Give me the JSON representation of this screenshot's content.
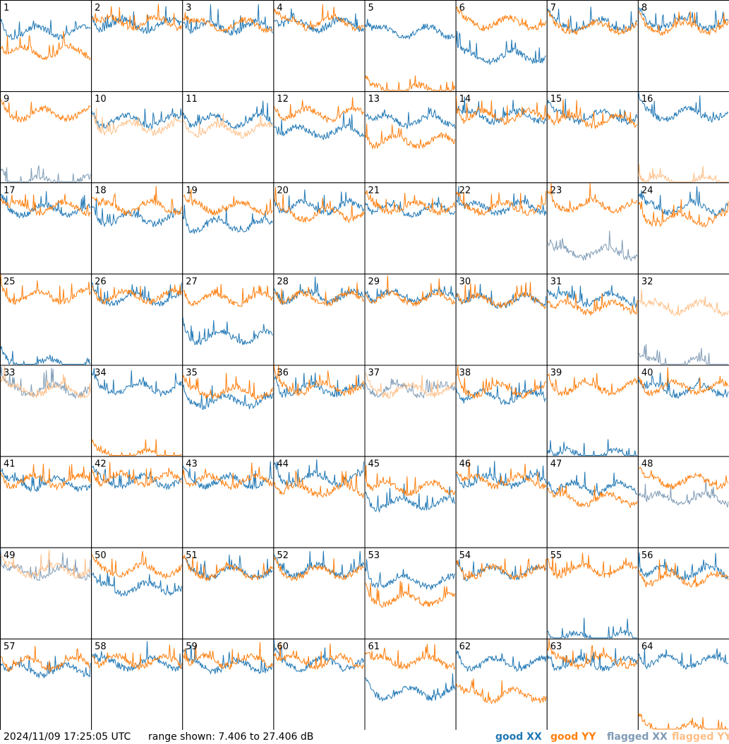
{
  "footer": {
    "timestamp": "2024/11/09 17:25:05 UTC",
    "range_text": "range shown: 7.406 to 27.406 dB"
  },
  "legend": [
    {
      "key": "good_xx",
      "label": "good XX",
      "color": "#1f77b4"
    },
    {
      "key": "good_yy",
      "label": "good YY",
      "color": "#ff7f0e"
    },
    {
      "key": "flagged_xx",
      "label": "flagged XX",
      "color": "#7f9bb5"
    },
    {
      "key": "flagged_yy",
      "label": "flagged YY",
      "color": "#ffbf87"
    }
  ],
  "chart_data": {
    "type": "line",
    "title": "",
    "xlabel": "",
    "ylabel": "",
    "ylim": [
      7.406,
      27.406
    ],
    "grid_layout": [
      8,
      8
    ],
    "panels": [
      {
        "id": "1",
        "xx": "good",
        "yy": "good",
        "xx_mean": 20.5,
        "yy_mean": 16.0
      },
      {
        "id": "2",
        "xx": "good",
        "yy": "good",
        "xx_mean": 22.0,
        "yy_mean": 22.5
      },
      {
        "id": "3",
        "xx": "good",
        "yy": "good",
        "xx_mean": 21.5,
        "yy_mean": 22.0
      },
      {
        "id": "4",
        "xx": "good",
        "yy": "good",
        "xx_mean": 22.0,
        "yy_mean": 22.5
      },
      {
        "id": "5",
        "xx": "good",
        "yy": "good",
        "xx_mean": 20.5,
        "yy_mean": 7.4
      },
      {
        "id": "6",
        "xx": "good",
        "yy": "good",
        "xx_mean": 15.0,
        "yy_mean": 22.5
      },
      {
        "id": "7",
        "xx": "good",
        "yy": "good",
        "xx_mean": 22.0,
        "yy_mean": 21.5
      },
      {
        "id": "8",
        "xx": "good",
        "yy": "good",
        "xx_mean": 22.5,
        "yy_mean": 21.5
      },
      {
        "id": "9",
        "xx": "flagged",
        "yy": "good",
        "xx_mean": 7.4,
        "yy_mean": 22.5
      },
      {
        "id": "10",
        "xx": "good",
        "yy": "flagged",
        "xx_mean": 21.0,
        "yy_mean": 19.5
      },
      {
        "id": "11",
        "xx": "good",
        "yy": "flagged",
        "xx_mean": 21.0,
        "yy_mean": 19.0
      },
      {
        "id": "12",
        "xx": "good",
        "yy": "good",
        "xx_mean": 18.5,
        "yy_mean": 22.5
      },
      {
        "id": "13",
        "xx": "good",
        "yy": "good",
        "xx_mean": 21.0,
        "yy_mean": 16.5
      },
      {
        "id": "14",
        "xx": "good",
        "yy": "good",
        "xx_mean": 22.0,
        "yy_mean": 22.0
      },
      {
        "id": "15",
        "xx": "good",
        "yy": "good",
        "xx_mean": 22.0,
        "yy_mean": 21.0
      },
      {
        "id": "16",
        "xx": "good",
        "yy": "flagged",
        "xx_mean": 22.5,
        "yy_mean": 7.4
      },
      {
        "id": "17",
        "xx": "good",
        "yy": "good",
        "xx_mean": 21.5,
        "yy_mean": 22.0
      },
      {
        "id": "18",
        "xx": "good",
        "yy": "good",
        "xx_mean": 19.5,
        "yy_mean": 22.0
      },
      {
        "id": "19",
        "xx": "good",
        "yy": "good",
        "xx_mean": 18.0,
        "yy_mean": 22.0
      },
      {
        "id": "20",
        "xx": "good",
        "yy": "good",
        "xx_mean": 22.0,
        "yy_mean": 20.5
      },
      {
        "id": "21",
        "xx": "good",
        "yy": "good",
        "xx_mean": 21.5,
        "yy_mean": 22.0
      },
      {
        "id": "22",
        "xx": "good",
        "yy": "good",
        "xx_mean": 22.0,
        "yy_mean": 22.0
      },
      {
        "id": "23",
        "xx": "flagged",
        "yy": "good",
        "xx_mean": 12.0,
        "yy_mean": 22.5
      },
      {
        "id": "24",
        "xx": "good",
        "yy": "good",
        "xx_mean": 22.0,
        "yy_mean": 19.5
      },
      {
        "id": "25",
        "xx": "good",
        "yy": "good",
        "xx_mean": 7.4,
        "yy_mean": 22.5
      },
      {
        "id": "26",
        "xx": "good",
        "yy": "good",
        "xx_mean": 22.0,
        "yy_mean": 22.5
      },
      {
        "id": "27",
        "xx": "good",
        "yy": "good",
        "xx_mean": 13.5,
        "yy_mean": 22.0
      },
      {
        "id": "28",
        "xx": "good",
        "yy": "good",
        "xx_mean": 22.5,
        "yy_mean": 22.0
      },
      {
        "id": "29",
        "xx": "good",
        "yy": "good",
        "xx_mean": 22.5,
        "yy_mean": 22.0
      },
      {
        "id": "30",
        "xx": "good",
        "yy": "good",
        "xx_mean": 21.5,
        "yy_mean": 21.5
      },
      {
        "id": "31",
        "xx": "good",
        "yy": "good",
        "xx_mean": 22.0,
        "yy_mean": 20.0
      },
      {
        "id": "32",
        "xx": "flagged",
        "yy": "flagged",
        "xx_mean": 7.4,
        "yy_mean": 20.0
      },
      {
        "id": "33",
        "xx": "flagged",
        "yy": "flagged",
        "xx_mean": 22.0,
        "yy_mean": 22.0
      },
      {
        "id": "34",
        "xx": "good",
        "yy": "good",
        "xx_mean": 22.5,
        "yy_mean": 7.4
      },
      {
        "id": "35",
        "xx": "good",
        "yy": "good",
        "xx_mean": 19.5,
        "yy_mean": 21.5
      },
      {
        "id": "36",
        "xx": "good",
        "yy": "good",
        "xx_mean": 22.0,
        "yy_mean": 22.5
      },
      {
        "id": "37",
        "xx": "flagged",
        "yy": "flagged",
        "xx_mean": 22.0,
        "yy_mean": 22.0
      },
      {
        "id": "38",
        "xx": "good",
        "yy": "good",
        "xx_mean": 20.5,
        "yy_mean": 22.0
      },
      {
        "id": "39",
        "xx": "good",
        "yy": "good",
        "xx_mean": 7.4,
        "yy_mean": 22.5
      },
      {
        "id": "40",
        "xx": "good",
        "yy": "good",
        "xx_mean": 22.0,
        "yy_mean": 22.5
      },
      {
        "id": "41",
        "xx": "good",
        "yy": "good",
        "xx_mean": 21.5,
        "yy_mean": 22.0
      },
      {
        "id": "42",
        "xx": "good",
        "yy": "good",
        "xx_mean": 22.0,
        "yy_mean": 22.5
      },
      {
        "id": "43",
        "xx": "good",
        "yy": "good",
        "xx_mean": 22.0,
        "yy_mean": 22.0
      },
      {
        "id": "44",
        "xx": "good",
        "yy": "good",
        "xx_mean": 22.5,
        "yy_mean": 20.0
      },
      {
        "id": "45",
        "xx": "good",
        "yy": "good",
        "xx_mean": 17.0,
        "yy_mean": 20.5
      },
      {
        "id": "46",
        "xx": "good",
        "yy": "good",
        "xx_mean": 22.0,
        "yy_mean": 22.0
      },
      {
        "id": "47",
        "xx": "good",
        "yy": "good",
        "xx_mean": 20.5,
        "yy_mean": 18.0
      },
      {
        "id": "48",
        "xx": "flagged",
        "yy": "good",
        "xx_mean": 18.0,
        "yy_mean": 22.0
      },
      {
        "id": "49",
        "xx": "flagged",
        "yy": "flagged",
        "xx_mean": 22.0,
        "yy_mean": 22.5
      },
      {
        "id": "50",
        "xx": "good",
        "yy": "good",
        "xx_mean": 18.5,
        "yy_mean": 22.5
      },
      {
        "id": "51",
        "xx": "good",
        "yy": "good",
        "xx_mean": 22.0,
        "yy_mean": 22.0
      },
      {
        "id": "52",
        "xx": "good",
        "yy": "good",
        "xx_mean": 22.5,
        "yy_mean": 22.0
      },
      {
        "id": "53",
        "xx": "good",
        "yy": "good",
        "xx_mean": 20.0,
        "yy_mean": 16.0
      },
      {
        "id": "54",
        "xx": "good",
        "yy": "good",
        "xx_mean": 22.0,
        "yy_mean": 22.0
      },
      {
        "id": "55",
        "xx": "good",
        "yy": "good",
        "xx_mean": 7.4,
        "yy_mean": 22.5
      },
      {
        "id": "56",
        "xx": "good",
        "yy": "good",
        "xx_mean": 22.0,
        "yy_mean": 20.5
      },
      {
        "id": "57",
        "xx": "good",
        "yy": "good",
        "xx_mean": 20.5,
        "yy_mean": 22.0
      },
      {
        "id": "58",
        "xx": "good",
        "yy": "good",
        "xx_mean": 22.0,
        "yy_mean": 22.5
      },
      {
        "id": "59",
        "xx": "good",
        "yy": "good",
        "xx_mean": 21.5,
        "yy_mean": 22.5
      },
      {
        "id": "60",
        "xx": "good",
        "yy": "good",
        "xx_mean": 22.0,
        "yy_mean": 22.5
      },
      {
        "id": "61",
        "xx": "good",
        "yy": "good",
        "xx_mean": 15.5,
        "yy_mean": 22.5
      },
      {
        "id": "62",
        "xx": "good",
        "yy": "good",
        "xx_mean": 22.0,
        "yy_mean": 15.0
      },
      {
        "id": "63",
        "xx": "good",
        "yy": "good",
        "xx_mean": 22.0,
        "yy_mean": 22.5
      },
      {
        "id": "64",
        "xx": "good",
        "yy": "good",
        "xx_mean": 22.5,
        "yy_mean": 7.4
      }
    ]
  }
}
